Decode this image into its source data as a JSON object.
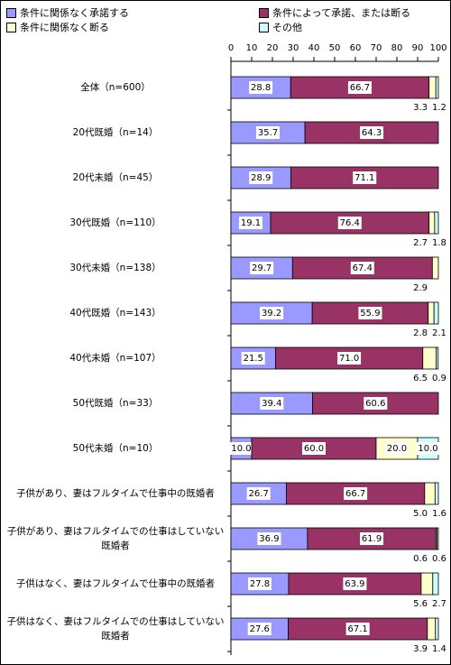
{
  "chart_data": {
    "type": "stacked-bar-horizontal",
    "categories": [
      "全体（n=600）",
      "20代既婚（n=14）",
      "20代未婚（n=45）",
      "30代既婚（n=110）",
      "30代未婚（n=138）",
      "40代既婚（n=143）",
      "40代未婚（n=107）",
      "50代既婚（n=33）",
      "50代未婚（n=10）",
      "子供があり、妻はフルタイムで仕事中の既婚者",
      "子供があり、妻はフルタイムでの仕事はしていない既婚者",
      "子供はなく、妻はフルタイムで仕事中の既婚者",
      "子供はなく、妻はフルタイムでの仕事はしていない既婚者"
    ],
    "series": [
      {
        "name": "条件に関係なく承諾する",
        "color": "#9999ff",
        "values": [
          28.8,
          35.7,
          28.9,
          19.1,
          29.7,
          39.2,
          21.5,
          39.4,
          10.0,
          26.7,
          36.9,
          27.8,
          27.6
        ],
        "value_labels": [
          "28.8",
          "35.7",
          "28.9",
          "19.1",
          "29.7",
          "39.2",
          "21.5",
          "39.4",
          "10.0",
          "26.7",
          "36.9",
          "27.8",
          "27.6"
        ]
      },
      {
        "name": "条件によって承諾、または断る",
        "color": "#993366",
        "values": [
          66.7,
          64.3,
          71.1,
          76.4,
          67.4,
          55.9,
          71.0,
          60.6,
          60.0,
          66.7,
          61.9,
          63.9,
          67.1
        ],
        "value_labels": [
          "66.7",
          "64.3",
          "71.1",
          "76.4",
          "67.4",
          "55.9",
          "71.0",
          "60.6",
          "60.0",
          "66.7",
          "61.9",
          "63.9",
          "67.1"
        ]
      },
      {
        "name": "条件に関係なく断る",
        "color": "#ffffcc",
        "values": [
          3.3,
          null,
          null,
          2.7,
          2.9,
          2.8,
          6.5,
          null,
          20.0,
          5.0,
          0.6,
          5.6,
          3.9
        ],
        "value_labels": [
          "3.3",
          null,
          null,
          "2.7",
          "2.9",
          "2.8",
          "6.5",
          null,
          "20.0",
          "5.0",
          "0.6",
          "5.6",
          "3.9"
        ]
      },
      {
        "name": "その他",
        "color": "#ccffff",
        "values": [
          1.2,
          null,
          null,
          1.8,
          null,
          2.1,
          0.9,
          null,
          10.0,
          1.6,
          0.6,
          2.7,
          1.4
        ],
        "value_labels": [
          "1.2",
          null,
          null,
          "1.8",
          null,
          "2.1",
          "0.9",
          null,
          "10.0",
          "1.6",
          "0.6",
          "2.7",
          "1.4"
        ]
      }
    ],
    "xlim": [
      0,
      100
    ],
    "xticks": [
      0,
      10,
      20,
      30,
      40,
      50,
      60,
      70,
      80,
      90,
      100
    ]
  }
}
